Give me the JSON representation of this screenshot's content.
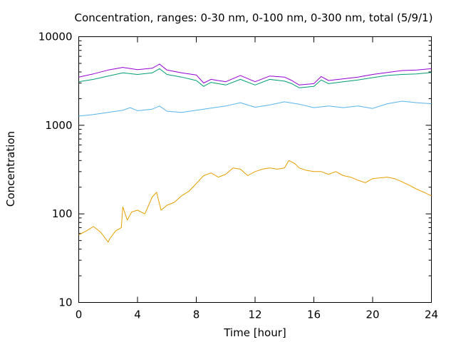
{
  "chart_data": {
    "type": "line",
    "title": "Concentration, ranges: 0-30 nm, 0-100 nm, 0-300 nm, total (5/9/1)",
    "xlabel": "Time [hour]",
    "ylabel": "Concentration",
    "xlim": [
      0,
      24
    ],
    "ylim": [
      10,
      10000
    ],
    "yscale": "log",
    "grid": false,
    "legend": "none",
    "xticks": [
      "0",
      "4",
      "8",
      "12",
      "16",
      "20",
      "24"
    ],
    "yticks": [
      "10",
      "100",
      "1000",
      "10000"
    ],
    "series": [
      {
        "color": "#e69f00",
        "x": [
          0,
          0.5,
          1,
          1.5,
          2,
          2.1,
          2.5,
          2.9,
          3.0,
          3.3,
          3.6,
          4,
          4.5,
          5,
          5.3,
          5.6,
          6,
          6.5,
          7,
          7.5,
          8,
          8.5,
          9,
          9.5,
          10,
          10.5,
          11,
          11.5,
          12,
          12.5,
          13,
          13.5,
          14,
          14.3,
          14.7,
          15,
          15.5,
          16,
          16.5,
          17,
          17.5,
          18,
          18.5,
          19,
          19.5,
          20,
          20.5,
          21,
          21.5,
          22,
          22.5,
          23,
          23.5,
          24
        ],
        "y": [
          58,
          64,
          72,
          62,
          48,
          52,
          64,
          70,
          120,
          85,
          105,
          110,
          100,
          155,
          175,
          110,
          125,
          135,
          160,
          180,
          220,
          270,
          290,
          260,
          280,
          330,
          320,
          270,
          300,
          320,
          330,
          320,
          330,
          400,
          370,
          330,
          310,
          300,
          300,
          280,
          300,
          270,
          260,
          240,
          225,
          250,
          255,
          260,
          250,
          230,
          210,
          190,
          175,
          160
        ]
      },
      {
        "color": "#56b4e9",
        "x": [
          0,
          1,
          2,
          3,
          3.5,
          4,
          5,
          5.5,
          6,
          7,
          8,
          9,
          10,
          11,
          12,
          13,
          14,
          15,
          16,
          17,
          18,
          19,
          20,
          21,
          22,
          23,
          24
        ],
        "y": [
          1270,
          1320,
          1400,
          1480,
          1580,
          1460,
          1520,
          1650,
          1440,
          1400,
          1480,
          1560,
          1650,
          1800,
          1600,
          1700,
          1840,
          1730,
          1580,
          1650,
          1580,
          1650,
          1550,
          1750,
          1870,
          1800,
          1750
        ]
      },
      {
        "color": "#009e73",
        "x": [
          0,
          1,
          2,
          3,
          4,
          5,
          5.5,
          6,
          7,
          8,
          8.5,
          9,
          10,
          11,
          12,
          13,
          14,
          14.5,
          15,
          16,
          16.5,
          17,
          18,
          19,
          20,
          21,
          22,
          23,
          24
        ],
        "y": [
          3100,
          3300,
          3600,
          3900,
          3750,
          3900,
          4350,
          3750,
          3500,
          3200,
          2750,
          3050,
          2850,
          3300,
          2850,
          3300,
          3150,
          2950,
          2650,
          2750,
          3250,
          2950,
          3100,
          3250,
          3450,
          3650,
          3750,
          3800,
          3950
        ]
      },
      {
        "color": "#9400d3",
        "x": [
          0,
          1,
          2,
          3,
          4,
          5,
          5.5,
          6,
          7,
          8,
          8.5,
          9,
          10,
          11,
          12,
          13,
          14,
          14.5,
          15,
          16,
          16.5,
          17,
          18,
          19,
          20,
          21,
          22,
          23,
          24
        ],
        "y": [
          3500,
          3800,
          4200,
          4500,
          4250,
          4400,
          4900,
          4200,
          3900,
          3700,
          3000,
          3300,
          3100,
          3650,
          3100,
          3600,
          3500,
          3200,
          2850,
          2950,
          3550,
          3200,
          3350,
          3500,
          3750,
          3950,
          4150,
          4200,
          4350
        ]
      }
    ]
  }
}
